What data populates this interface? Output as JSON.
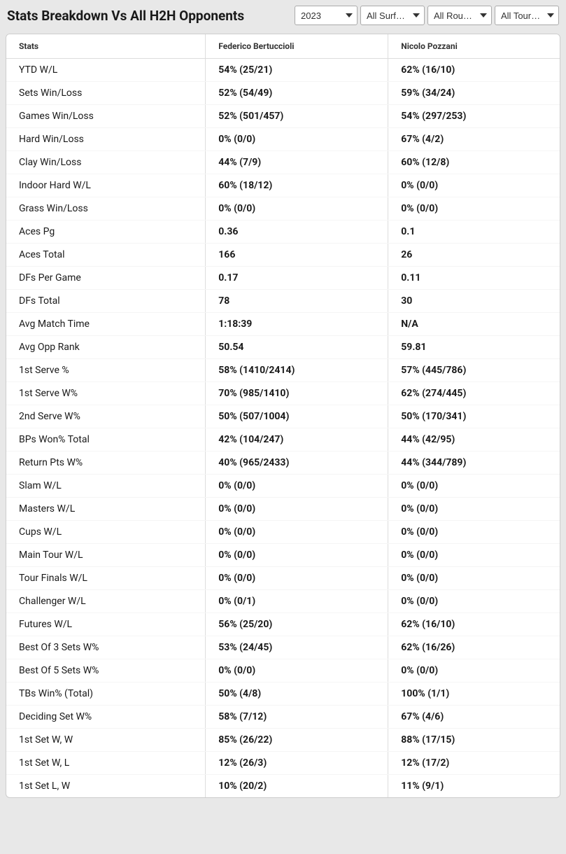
{
  "header": {
    "title": "Stats Breakdown Vs All H2H Opponents"
  },
  "filters": {
    "year": {
      "selected": "2023"
    },
    "surface": {
      "selected": "All Surf…"
    },
    "round": {
      "selected": "All Rou…"
    },
    "tour": {
      "selected": "All Tour…"
    }
  },
  "table": {
    "columns": {
      "stats": "Stats",
      "player1": "Federico Bertuccioli",
      "player2": "Nicolo Pozzani"
    },
    "rows": [
      {
        "stat": "YTD W/L",
        "p1": "54% (25/21)",
        "p2": "62% (16/10)"
      },
      {
        "stat": "Sets Win/Loss",
        "p1": "52% (54/49)",
        "p2": "59% (34/24)"
      },
      {
        "stat": "Games Win/Loss",
        "p1": "52% (501/457)",
        "p2": "54% (297/253)"
      },
      {
        "stat": "Hard Win/Loss",
        "p1": "0% (0/0)",
        "p2": "67% (4/2)"
      },
      {
        "stat": "Clay Win/Loss",
        "p1": "44% (7/9)",
        "p2": "60% (12/8)"
      },
      {
        "stat": "Indoor Hard W/L",
        "p1": "60% (18/12)",
        "p2": "0% (0/0)"
      },
      {
        "stat": "Grass Win/Loss",
        "p1": "0% (0/0)",
        "p2": "0% (0/0)"
      },
      {
        "stat": "Aces Pg",
        "p1": "0.36",
        "p2": "0.1"
      },
      {
        "stat": "Aces Total",
        "p1": "166",
        "p2": "26"
      },
      {
        "stat": "DFs Per Game",
        "p1": "0.17",
        "p2": "0.11"
      },
      {
        "stat": "DFs Total",
        "p1": "78",
        "p2": "30"
      },
      {
        "stat": "Avg Match Time",
        "p1": "1:18:39",
        "p2": "N/A"
      },
      {
        "stat": "Avg Opp Rank",
        "p1": "50.54",
        "p2": "59.81"
      },
      {
        "stat": "1st Serve %",
        "p1": "58% (1410/2414)",
        "p2": "57% (445/786)"
      },
      {
        "stat": "1st Serve W%",
        "p1": "70% (985/1410)",
        "p2": "62% (274/445)"
      },
      {
        "stat": "2nd Serve W%",
        "p1": "50% (507/1004)",
        "p2": "50% (170/341)"
      },
      {
        "stat": "BPs Won% Total",
        "p1": "42% (104/247)",
        "p2": "44% (42/95)"
      },
      {
        "stat": "Return Pts W%",
        "p1": "40% (965/2433)",
        "p2": "44% (344/789)"
      },
      {
        "stat": "Slam W/L",
        "p1": "0% (0/0)",
        "p2": "0% (0/0)"
      },
      {
        "stat": "Masters W/L",
        "p1": "0% (0/0)",
        "p2": "0% (0/0)"
      },
      {
        "stat": "Cups W/L",
        "p1": "0% (0/0)",
        "p2": "0% (0/0)"
      },
      {
        "stat": "Main Tour W/L",
        "p1": "0% (0/0)",
        "p2": "0% (0/0)"
      },
      {
        "stat": "Tour Finals W/L",
        "p1": "0% (0/0)",
        "p2": "0% (0/0)"
      },
      {
        "stat": "Challenger W/L",
        "p1": "0% (0/1)",
        "p2": "0% (0/0)"
      },
      {
        "stat": "Futures W/L",
        "p1": "56% (25/20)",
        "p2": "62% (16/10)"
      },
      {
        "stat": "Best Of 3 Sets W%",
        "p1": "53% (24/45)",
        "p2": "62% (16/26)"
      },
      {
        "stat": "Best Of 5 Sets W%",
        "p1": "0% (0/0)",
        "p2": "0% (0/0)"
      },
      {
        "stat": "TBs Win% (Total)",
        "p1": "50% (4/8)",
        "p2": "100% (1/1)"
      },
      {
        "stat": "Deciding Set W%",
        "p1": "58% (7/12)",
        "p2": "67% (4/6)"
      },
      {
        "stat": "1st Set W, W",
        "p1": "85% (26/22)",
        "p2": "88% (17/15)"
      },
      {
        "stat": "1st Set W, L",
        "p1": "12% (26/3)",
        "p2": "12% (17/2)"
      },
      {
        "stat": "1st Set L, W",
        "p1": "10% (20/2)",
        "p2": "11% (9/1)"
      }
    ]
  },
  "styling": {
    "background_color": "#e8e8e8",
    "table_background": "#ffffff",
    "border_color": "#cccccc",
    "divider_color": "#dddddd",
    "row_divider_color": "#f5f5f5",
    "title_fontsize": 19,
    "header_fontsize": 12,
    "cell_fontsize": 14,
    "text_color": "#1a1a1a"
  }
}
